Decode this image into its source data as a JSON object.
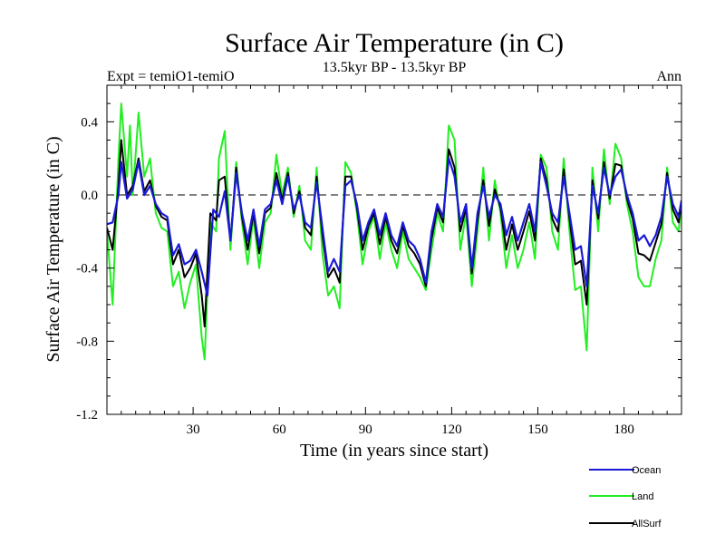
{
  "chart_data": {
    "type": "line",
    "title": "Surface Air Temperature (in C)",
    "subtitle_left": "Expt = temiO1-temiO",
    "subtitle_center": "13.5kyr BP - 13.5kyr BP",
    "subtitle_right": "Ann",
    "xlabel": "Time (in years since start)",
    "ylabel": "Surface Air Temperature (in C)",
    "xlim": [
      0,
      200
    ],
    "ylim": [
      -1.2,
      0.6
    ],
    "xticks": [
      30,
      60,
      90,
      120,
      150,
      180
    ],
    "yticks": [
      -1.2,
      -0.8,
      -0.4,
      0.0,
      0.4
    ],
    "ytick_labels": [
      "-1.2",
      "-0.8",
      "-0.4",
      "0.0",
      "0.4"
    ],
    "zero_line": 0.0,
    "legend_position": "bottom-right",
    "colors": {
      "Ocean": "#1a1ad6",
      "Land": "#22ee22",
      "AllSurf": "#000000"
    },
    "series": [
      {
        "name": "Ocean",
        "key": [
          [
            0,
            -0.16
          ],
          [
            2,
            -0.15
          ],
          [
            4,
            0.0
          ],
          [
            5,
            0.18
          ],
          [
            7,
            -0.02
          ],
          [
            9,
            0.03
          ],
          [
            11,
            0.18
          ],
          [
            13,
            0.0
          ],
          [
            15,
            0.05
          ],
          [
            17,
            -0.05
          ],
          [
            19,
            -0.1
          ],
          [
            21,
            -0.12
          ],
          [
            23,
            -0.33
          ],
          [
            25,
            -0.27
          ],
          [
            27,
            -0.38
          ],
          [
            29,
            -0.36
          ],
          [
            31,
            -0.3
          ],
          [
            33,
            -0.42
          ],
          [
            35,
            -0.55
          ],
          [
            37,
            -0.08
          ],
          [
            39,
            -0.12
          ],
          [
            41,
            0.02
          ],
          [
            43,
            -0.25
          ],
          [
            45,
            0.12
          ],
          [
            47,
            -0.1
          ],
          [
            49,
            -0.25
          ],
          [
            51,
            -0.08
          ],
          [
            53,
            -0.28
          ],
          [
            55,
            -0.08
          ],
          [
            57,
            -0.05
          ],
          [
            59,
            0.08
          ],
          [
            61,
            -0.05
          ],
          [
            63,
            0.1
          ],
          [
            65,
            -0.08
          ],
          [
            67,
            0.0
          ],
          [
            69,
            -0.15
          ],
          [
            71,
            -0.18
          ],
          [
            73,
            0.07
          ],
          [
            75,
            -0.18
          ],
          [
            77,
            -0.42
          ],
          [
            79,
            -0.35
          ],
          [
            81,
            -0.42
          ],
          [
            83,
            0.05
          ],
          [
            85,
            0.08
          ],
          [
            87,
            -0.05
          ],
          [
            89,
            -0.25
          ],
          [
            91,
            -0.15
          ],
          [
            93,
            -0.08
          ],
          [
            95,
            -0.22
          ],
          [
            97,
            -0.1
          ],
          [
            99,
            -0.22
          ],
          [
            101,
            -0.28
          ],
          [
            103,
            -0.15
          ],
          [
            105,
            -0.25
          ],
          [
            107,
            -0.28
          ],
          [
            109,
            -0.35
          ],
          [
            111,
            -0.48
          ],
          [
            113,
            -0.2
          ],
          [
            115,
            -0.05
          ],
          [
            117,
            -0.12
          ],
          [
            119,
            0.2
          ],
          [
            121,
            0.1
          ],
          [
            123,
            -0.15
          ],
          [
            125,
            -0.05
          ],
          [
            127,
            -0.4
          ],
          [
            129,
            -0.1
          ],
          [
            131,
            0.05
          ],
          [
            133,
            -0.12
          ],
          [
            135,
            0.0
          ],
          [
            137,
            -0.05
          ],
          [
            139,
            -0.22
          ],
          [
            141,
            -0.12
          ],
          [
            143,
            -0.25
          ],
          [
            145,
            -0.15
          ],
          [
            147,
            -0.05
          ],
          [
            149,
            -0.2
          ],
          [
            151,
            0.18
          ],
          [
            153,
            0.05
          ],
          [
            155,
            -0.1
          ],
          [
            157,
            -0.15
          ],
          [
            159,
            0.1
          ],
          [
            161,
            -0.1
          ],
          [
            163,
            -0.3
          ],
          [
            165,
            -0.28
          ],
          [
            167,
            -0.5
          ],
          [
            169,
            0.05
          ],
          [
            171,
            -0.1
          ],
          [
            173,
            0.15
          ],
          [
            175,
            0.0
          ],
          [
            177,
            0.1
          ],
          [
            179,
            0.14
          ],
          [
            181,
            0.0
          ],
          [
            183,
            -0.1
          ],
          [
            185,
            -0.25
          ],
          [
            187,
            -0.22
          ],
          [
            189,
            -0.28
          ],
          [
            191,
            -0.22
          ],
          [
            193,
            -0.12
          ],
          [
            195,
            0.1
          ],
          [
            197,
            -0.05
          ],
          [
            199,
            -0.12
          ],
          [
            200,
            -0.03
          ]
        ]
      },
      {
        "name": "Land",
        "key": [
          [
            0,
            -0.2
          ],
          [
            2,
            -0.6
          ],
          [
            4,
            0.2
          ],
          [
            5,
            0.5
          ],
          [
            6,
            0.3
          ],
          [
            7,
            0.1
          ],
          [
            8,
            0.38
          ],
          [
            9,
            0.0
          ],
          [
            11,
            0.45
          ],
          [
            13,
            0.1
          ],
          [
            15,
            0.2
          ],
          [
            17,
            -0.1
          ],
          [
            19,
            -0.18
          ],
          [
            21,
            -0.2
          ],
          [
            23,
            -0.5
          ],
          [
            25,
            -0.42
          ],
          [
            27,
            -0.62
          ],
          [
            29,
            -0.48
          ],
          [
            31,
            -0.38
          ],
          [
            33,
            -0.78
          ],
          [
            34,
            -0.9
          ],
          [
            36,
            -0.15
          ],
          [
            38,
            -0.2
          ],
          [
            39,
            0.2
          ],
          [
            41,
            0.35
          ],
          [
            43,
            -0.3
          ],
          [
            45,
            0.18
          ],
          [
            47,
            -0.15
          ],
          [
            49,
            -0.38
          ],
          [
            51,
            -0.12
          ],
          [
            53,
            -0.4
          ],
          [
            55,
            -0.15
          ],
          [
            57,
            -0.1
          ],
          [
            59,
            0.22
          ],
          [
            61,
            0.0
          ],
          [
            63,
            0.15
          ],
          [
            65,
            -0.12
          ],
          [
            67,
            0.05
          ],
          [
            69,
            -0.25
          ],
          [
            71,
            -0.3
          ],
          [
            73,
            0.15
          ],
          [
            75,
            -0.32
          ],
          [
            77,
            -0.55
          ],
          [
            79,
            -0.5
          ],
          [
            81,
            -0.62
          ],
          [
            83,
            0.18
          ],
          [
            85,
            0.12
          ],
          [
            87,
            -0.1
          ],
          [
            89,
            -0.38
          ],
          [
            91,
            -0.2
          ],
          [
            93,
            -0.12
          ],
          [
            95,
            -0.35
          ],
          [
            97,
            -0.15
          ],
          [
            99,
            -0.3
          ],
          [
            101,
            -0.4
          ],
          [
            103,
            -0.2
          ],
          [
            105,
            -0.35
          ],
          [
            107,
            -0.4
          ],
          [
            109,
            -0.45
          ],
          [
            111,
            -0.52
          ],
          [
            113,
            -0.3
          ],
          [
            115,
            -0.1
          ],
          [
            117,
            -0.2
          ],
          [
            119,
            0.38
          ],
          [
            121,
            0.3
          ],
          [
            123,
            -0.3
          ],
          [
            125,
            -0.1
          ],
          [
            127,
            -0.5
          ],
          [
            129,
            -0.2
          ],
          [
            131,
            0.15
          ],
          [
            133,
            -0.25
          ],
          [
            135,
            0.08
          ],
          [
            137,
            -0.1
          ],
          [
            139,
            -0.4
          ],
          [
            141,
            -0.22
          ],
          [
            143,
            -0.4
          ],
          [
            145,
            -0.3
          ],
          [
            147,
            -0.15
          ],
          [
            149,
            -0.35
          ],
          [
            151,
            0.22
          ],
          [
            153,
            0.15
          ],
          [
            155,
            -0.2
          ],
          [
            157,
            -0.3
          ],
          [
            159,
            0.2
          ],
          [
            161,
            -0.2
          ],
          [
            163,
            -0.52
          ],
          [
            165,
            -0.5
          ],
          [
            167,
            -0.85
          ],
          [
            169,
            0.15
          ],
          [
            171,
            -0.2
          ],
          [
            173,
            0.25
          ],
          [
            175,
            -0.05
          ],
          [
            177,
            0.28
          ],
          [
            179,
            0.2
          ],
          [
            181,
            -0.05
          ],
          [
            183,
            -0.2
          ],
          [
            185,
            -0.45
          ],
          [
            187,
            -0.5
          ],
          [
            189,
            -0.5
          ],
          [
            191,
            -0.35
          ],
          [
            193,
            -0.25
          ],
          [
            195,
            0.15
          ],
          [
            197,
            -0.15
          ],
          [
            199,
            -0.2
          ],
          [
            200,
            -0.05
          ]
        ]
      },
      {
        "name": "AllSurf",
        "key": [
          [
            0,
            -0.18
          ],
          [
            2,
            -0.3
          ],
          [
            4,
            0.05
          ],
          [
            5,
            0.3
          ],
          [
            7,
            0.0
          ],
          [
            9,
            0.05
          ],
          [
            11,
            0.2
          ],
          [
            13,
            0.02
          ],
          [
            15,
            0.08
          ],
          [
            17,
            -0.06
          ],
          [
            19,
            -0.12
          ],
          [
            21,
            -0.14
          ],
          [
            23,
            -0.38
          ],
          [
            25,
            -0.3
          ],
          [
            27,
            -0.45
          ],
          [
            29,
            -0.4
          ],
          [
            31,
            -0.32
          ],
          [
            33,
            -0.55
          ],
          [
            34,
            -0.72
          ],
          [
            36,
            -0.1
          ],
          [
            38,
            -0.14
          ],
          [
            39,
            0.08
          ],
          [
            41,
            0.1
          ],
          [
            43,
            -0.25
          ],
          [
            45,
            0.15
          ],
          [
            47,
            -0.12
          ],
          [
            49,
            -0.3
          ],
          [
            51,
            -0.1
          ],
          [
            53,
            -0.32
          ],
          [
            55,
            -0.1
          ],
          [
            57,
            -0.07
          ],
          [
            59,
            0.12
          ],
          [
            61,
            -0.03
          ],
          [
            63,
            0.12
          ],
          [
            65,
            -0.1
          ],
          [
            67,
            0.02
          ],
          [
            69,
            -0.18
          ],
          [
            71,
            -0.22
          ],
          [
            73,
            0.1
          ],
          [
            75,
            -0.22
          ],
          [
            77,
            -0.45
          ],
          [
            79,
            -0.4
          ],
          [
            81,
            -0.48
          ],
          [
            83,
            0.1
          ],
          [
            85,
            0.1
          ],
          [
            87,
            -0.07
          ],
          [
            89,
            -0.3
          ],
          [
            91,
            -0.17
          ],
          [
            93,
            -0.1
          ],
          [
            95,
            -0.27
          ],
          [
            97,
            -0.12
          ],
          [
            99,
            -0.25
          ],
          [
            101,
            -0.32
          ],
          [
            103,
            -0.17
          ],
          [
            105,
            -0.28
          ],
          [
            107,
            -0.32
          ],
          [
            109,
            -0.38
          ],
          [
            111,
            -0.5
          ],
          [
            113,
            -0.24
          ],
          [
            115,
            -0.07
          ],
          [
            117,
            -0.15
          ],
          [
            119,
            0.25
          ],
          [
            121,
            0.15
          ],
          [
            123,
            -0.2
          ],
          [
            125,
            -0.07
          ],
          [
            127,
            -0.43
          ],
          [
            129,
            -0.14
          ],
          [
            131,
            0.08
          ],
          [
            133,
            -0.17
          ],
          [
            135,
            0.03
          ],
          [
            137,
            -0.07
          ],
          [
            139,
            -0.3
          ],
          [
            141,
            -0.16
          ],
          [
            143,
            -0.3
          ],
          [
            145,
            -0.2
          ],
          [
            147,
            -0.09
          ],
          [
            149,
            -0.25
          ],
          [
            151,
            0.2
          ],
          [
            153,
            0.08
          ],
          [
            155,
            -0.13
          ],
          [
            157,
            -0.2
          ],
          [
            159,
            0.14
          ],
          [
            161,
            -0.13
          ],
          [
            163,
            -0.38
          ],
          [
            165,
            -0.36
          ],
          [
            167,
            -0.6
          ],
          [
            169,
            0.08
          ],
          [
            171,
            -0.13
          ],
          [
            173,
            0.18
          ],
          [
            175,
            -0.02
          ],
          [
            177,
            0.17
          ],
          [
            179,
            0.16
          ],
          [
            181,
            -0.02
          ],
          [
            183,
            -0.13
          ],
          [
            185,
            -0.32
          ],
          [
            187,
            -0.33
          ],
          [
            189,
            -0.36
          ],
          [
            191,
            -0.26
          ],
          [
            193,
            -0.16
          ],
          [
            195,
            0.12
          ],
          [
            197,
            -0.08
          ],
          [
            199,
            -0.15
          ],
          [
            200,
            -0.04
          ]
        ]
      }
    ]
  }
}
